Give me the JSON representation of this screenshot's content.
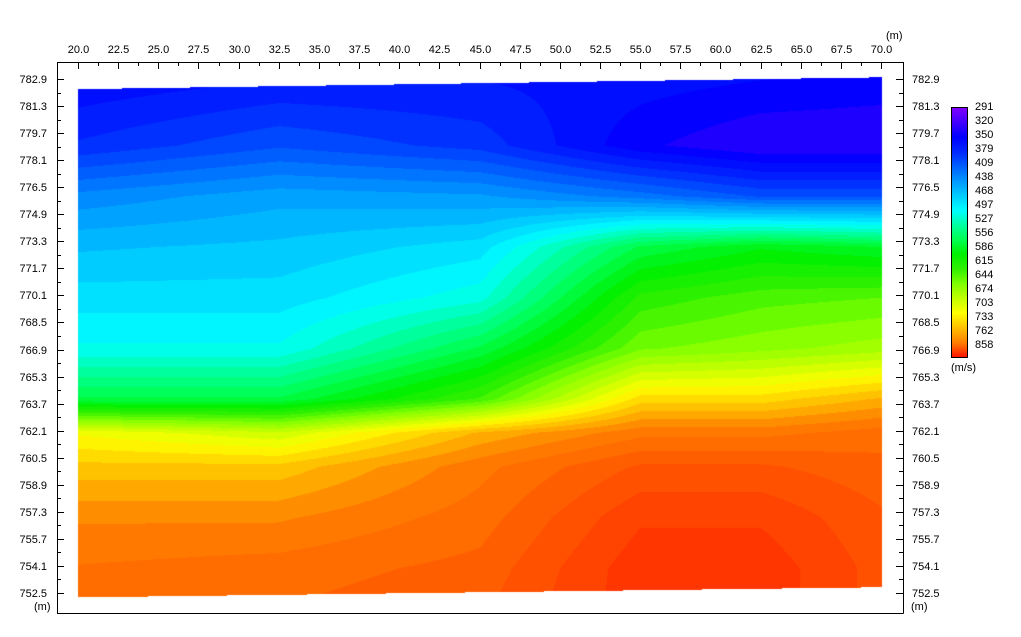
{
  "chart_data": {
    "type": "heatmap",
    "title": "",
    "x_unit": "(m)",
    "y_unit": "(m)",
    "colorbar_unit": "(m/s)",
    "xlim": [
      20.0,
      70.0
    ],
    "ylim": [
      752.5,
      782.9
    ],
    "x_ticks": [
      "20.0",
      "22.5",
      "25.0",
      "27.5",
      "30.0",
      "32.5",
      "35.0",
      "37.5",
      "40.0",
      "42.5",
      "45.0",
      "47.5",
      "50.0",
      "52.5",
      "55.0",
      "57.5",
      "60.0",
      "62.5",
      "65.0",
      "67.5",
      "70.0"
    ],
    "y_ticks": [
      "782.9",
      "781.3",
      "779.7",
      "778.1",
      "776.5",
      "774.9",
      "773.3",
      "771.7",
      "770.1",
      "768.5",
      "766.9",
      "765.3",
      "763.7",
      "762.1",
      "760.5",
      "758.9",
      "757.3",
      "755.7",
      "754.1",
      "752.5"
    ],
    "colorbar_ticks": [
      "291",
      "320",
      "350",
      "379",
      "409",
      "438",
      "468",
      "497",
      "527",
      "556",
      "586",
      "615",
      "644",
      "674",
      "703",
      "733",
      "762",
      "858"
    ],
    "colorbar_colors": [
      "#8000ff",
      "#4000ff",
      "#0000ff",
      "#0028ff",
      "#0060ff",
      "#0098ff",
      "#00ccff",
      "#00ffff",
      "#00ffa0",
      "#00ff50",
      "#00f000",
      "#30f000",
      "#80ff00",
      "#c0ff00",
      "#ffff00",
      "#ffc000",
      "#ff8000",
      "#ff1400"
    ],
    "top_surface": {
      "x": [
        20.0,
        70.0
      ],
      "elevation": [
        782.3,
        783.0
      ]
    },
    "bottom_surface": {
      "x": [
        20.0,
        70.0
      ],
      "elevation": [
        752.3,
        752.9
      ]
    },
    "grid_x": [
      20.0,
      32.5,
      45.0,
      55.0,
      62.5,
      70.0
    ],
    "grid_elevation": [
      783,
      779,
      776,
      773,
      770,
      767,
      764,
      762,
      760,
      757,
      754,
      752
    ],
    "velocity": [
      [
        355,
        365,
        365,
        360,
        355,
        350
      ],
      [
        380,
        400,
        385,
        345,
        330,
        330
      ],
      [
        430,
        445,
        440,
        420,
        400,
        400
      ],
      [
        460,
        465,
        480,
        560,
        580,
        570
      ],
      [
        480,
        480,
        505,
        610,
        625,
        630
      ],
      [
        500,
        500,
        560,
        640,
        650,
        660
      ],
      [
        560,
        560,
        620,
        720,
        720,
        740
      ],
      [
        700,
        680,
        740,
        770,
        770,
        780
      ],
      [
        730,
        730,
        770,
        800,
        800,
        790
      ],
      [
        760,
        760,
        780,
        820,
        820,
        800
      ],
      [
        775,
        780,
        790,
        830,
        830,
        805
      ],
      [
        780,
        785,
        795,
        830,
        830,
        805
      ]
    ]
  }
}
